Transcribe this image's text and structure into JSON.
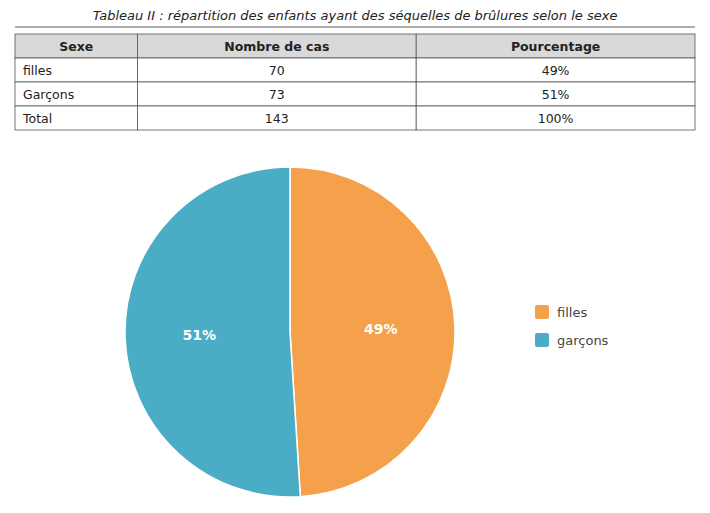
{
  "chart_data": [
    {
      "type": "table",
      "title": "Tableau II : répartition des enfants ayant des séquelles de brûlures selon le sexe",
      "columns": [
        "Sexe",
        "Nombre de cas",
        "Pourcentage"
      ],
      "rows": [
        [
          "filles",
          "70",
          "49%"
        ],
        [
          "Garçons",
          "73",
          "51%"
        ],
        [
          "Total",
          "143",
          "100%"
        ]
      ]
    },
    {
      "type": "pie",
      "categories": [
        "filles",
        "garçons"
      ],
      "values": [
        49,
        51
      ],
      "value_labels": [
        "49%",
        "51%"
      ],
      "colors": [
        "#F5A04A",
        "#4BACC6"
      ],
      "data_labels": true,
      "legend": "right"
    }
  ]
}
